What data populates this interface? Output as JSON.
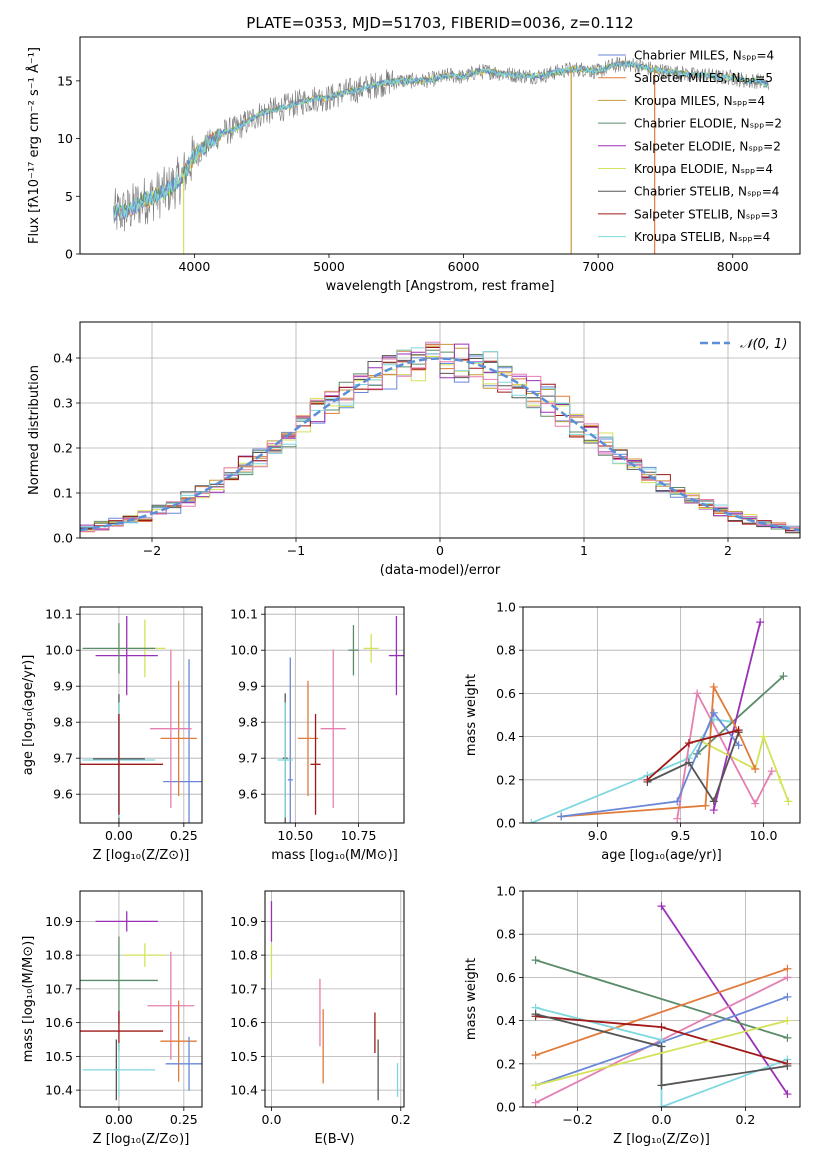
{
  "colors": {
    "chabrier_miles": "#6a87d8",
    "salpeter_miles": "#e07b39",
    "kroupa_miles": "#c49a3a",
    "chabrier_elodie": "#5b8c6a",
    "salpeter_elodie": "#9b30b8",
    "kroupa_elodie": "#d4e25a",
    "chabrier_stelib": "#555555",
    "salpeter_stelib": "#a01818",
    "kroupa_stelib": "#7fd8e0",
    "pink": "#e57fb0",
    "normal": "#5b8fd9"
  },
  "chart_data": [
    {
      "type": "line",
      "title": "PLATE=0353, MJD=51703, FIBERID=0036, z=0.112",
      "xlabel": "wavelength [Angstrom, rest frame]",
      "ylabel": "Flux [fλ10⁻¹⁷ erg cm⁻² s⁻¹ Å⁻¹]",
      "xlim": [
        3150,
        8500
      ],
      "ylim": [
        0,
        18.8
      ],
      "xticks": [
        "4000",
        "5000",
        "6000",
        "7000",
        "8000"
      ],
      "yticks": [
        "0",
        "5",
        "10",
        "15"
      ],
      "legend_position": "right",
      "legend": [
        {
          "key": "chabrier_miles",
          "text": "Chabrier MILES, Nₛₚₚ=4"
        },
        {
          "key": "salpeter_miles",
          "text": "Salpeter MILES, Nₛₚₚ=5"
        },
        {
          "key": "kroupa_miles",
          "text": "Kroupa MILES, Nₛₚₚ=4"
        },
        {
          "key": "chabrier_elodie",
          "text": "Chabrier ELODIE, Nₛₚₚ=2"
        },
        {
          "key": "salpeter_elodie",
          "text": "Salpeter ELODIE, Nₛₚₚ=2"
        },
        {
          "key": "kroupa_elodie",
          "text": "Kroupa ELODIE, Nₛₚₚ=4"
        },
        {
          "key": "chabrier_stelib",
          "text": "Chabrier STELIB, Nₛₚₚ=4"
        },
        {
          "key": "salpeter_stelib",
          "text": "Salpeter STELIB, Nₛₚₚ=3"
        },
        {
          "key": "kroupa_stelib",
          "text": "Kroupa STELIB, Nₛₚₚ=4"
        }
      ],
      "spectrum_x": [
        3400,
        3500,
        3600,
        3700,
        3800,
        3900,
        4000,
        4100,
        4200,
        4300,
        4400,
        4500,
        4600,
        4700,
        4800,
        4900,
        5000,
        5100,
        5200,
        5300,
        5400,
        5500,
        5600,
        5700,
        5800,
        5900,
        6000,
        6100,
        6200,
        6300,
        6400,
        6500,
        6600,
        6700,
        6800,
        6900,
        7000,
        7100,
        7200,
        7300,
        7400,
        7500,
        7600,
        7700,
        7800,
        7900,
        8000,
        8100,
        8200,
        8270
      ],
      "spectrum_y": [
        3.5,
        3.7,
        4.5,
        5.0,
        5.5,
        6.5,
        8.5,
        9.5,
        10.5,
        10.8,
        11.5,
        12.2,
        12.5,
        12.8,
        13.2,
        13.5,
        13.5,
        14.0,
        14.2,
        14.5,
        14.8,
        15.0,
        15.0,
        15.0,
        15.2,
        15.5,
        15.3,
        15.8,
        15.8,
        15.6,
        15.5,
        15.4,
        15.5,
        15.8,
        16.0,
        16.0,
        15.8,
        16.3,
        16.5,
        16.3,
        16.0,
        15.8,
        15.7,
        15.5,
        15.5,
        15.3,
        15.3,
        15.0,
        15.0,
        14.6
      ]
    },
    {
      "type": "area",
      "title": "",
      "xlabel": "(data-model)/error",
      "ylabel": "Normed distribution",
      "xlim": [
        -2.5,
        2.5
      ],
      "ylim": [
        0,
        0.48
      ],
      "xticks": [
        "−2",
        "−1",
        "0",
        "1",
        "2"
      ],
      "yticks": [
        "0.0",
        "0.1",
        "0.2",
        "0.3",
        "0.4"
      ],
      "grid": true,
      "legend_position": "top-right",
      "legend": [
        {
          "key": "normal",
          "text": "𝒩(0, 1)"
        }
      ],
      "bin_width": 0.1,
      "bin_start": -2.5,
      "series_keys": [
        "chabrier_miles",
        "salpeter_miles",
        "kroupa_miles",
        "chabrier_elodie",
        "salpeter_elodie",
        "kroupa_elodie",
        "chabrier_stelib",
        "salpeter_stelib",
        "kroupa_stelib",
        "pink"
      ]
    },
    {
      "type": "scatter",
      "xlabel": "Z [log₁₀(Z/Z⊙)]",
      "ylabel": "age  [log₁₀(age/yr)]",
      "xlim": [
        -0.15,
        0.32
      ],
      "ylim": [
        9.52,
        10.12
      ],
      "xticks": [
        "0.00",
        "0.25"
      ],
      "yticks": [
        "9.6",
        "9.7",
        "9.8",
        "9.9",
        "10.0",
        "10.1"
      ],
      "points": [
        {
          "key": "chabrier_miles",
          "x": 0.27,
          "y": 9.635,
          "xerr": 0.1,
          "yerr": 0.34
        },
        {
          "key": "salpeter_miles",
          "x": 0.23,
          "y": 9.755,
          "xerr": 0.07,
          "yerr": 0.16
        },
        {
          "key": "pink",
          "x": 0.2,
          "y": 9.782,
          "xerr": 0.08,
          "yerr": 0.22
        },
        {
          "key": "kroupa_elodie",
          "x": 0.1,
          "y": 10.005,
          "xerr": 0.08,
          "yerr": 0.08
        },
        {
          "key": "salpeter_elodie",
          "x": 0.03,
          "y": 9.985,
          "xerr": 0.12,
          "yerr": 0.11
        },
        {
          "key": "chabrier_elodie",
          "x": 0.0,
          "y": 10.005,
          "xerr": 0.14,
          "yerr": 0.07
        },
        {
          "key": "chabrier_stelib",
          "x": 0.0,
          "y": 9.698,
          "xerr": 0.1,
          "yerr": 0.18
        },
        {
          "key": "kroupa_stelib",
          "x": 0.0,
          "y": 9.695,
          "xerr": 0.14,
          "yerr": 0.16
        },
        {
          "key": "salpeter_stelib",
          "x": 0.0,
          "y": 9.683,
          "xerr": 0.17,
          "yerr": 0.14
        }
      ]
    },
    {
      "type": "scatter",
      "xlabel": "mass [log₁₀(M/M⊙)]",
      "ylabel": "",
      "xlim": [
        10.38,
        10.93
      ],
      "ylim": [
        9.52,
        10.12
      ],
      "xticks": [
        "10.50",
        "10.75"
      ],
      "yticks": [
        "9.6",
        "9.7",
        "9.8",
        "9.9",
        "10.0",
        "10.1"
      ],
      "points": [
        {
          "key": "chabrier_miles",
          "x": 10.48,
          "y": 9.64,
          "xerr": 0.01,
          "yerr": 0.34
        },
        {
          "key": "salpeter_miles",
          "x": 10.55,
          "y": 9.755,
          "xerr": 0.04,
          "yerr": 0.16
        },
        {
          "key": "pink",
          "x": 10.65,
          "y": 9.782,
          "xerr": 0.05,
          "yerr": 0.22
        },
        {
          "key": "kroupa_elodie",
          "x": 10.8,
          "y": 10.005,
          "xerr": 0.03,
          "yerr": 0.04
        },
        {
          "key": "salpeter_elodie",
          "x": 10.9,
          "y": 9.985,
          "xerr": 0.03,
          "yerr": 0.11
        },
        {
          "key": "chabrier_elodie",
          "x": 10.73,
          "y": 10.0,
          "xerr": 0.02,
          "yerr": 0.07
        },
        {
          "key": "chabrier_stelib",
          "x": 10.46,
          "y": 9.7,
          "xerr": 0.01,
          "yerr": 0.18
        },
        {
          "key": "kroupa_stelib",
          "x": 10.46,
          "y": 9.695,
          "xerr": 0.03,
          "yerr": 0.16
        },
        {
          "key": "salpeter_stelib",
          "x": 10.58,
          "y": 9.683,
          "xerr": 0.02,
          "yerr": 0.14
        }
      ]
    },
    {
      "type": "line",
      "xlabel": "age  [log₁₀(age/yr)]",
      "ylabel": "mass weight",
      "xlim": [
        8.55,
        10.22
      ],
      "ylim": [
        0,
        1.0
      ],
      "xticks": [
        "9.0",
        "9.5",
        "10.0"
      ],
      "yticks": [
        "0.0",
        "0.2",
        "0.4",
        "0.6",
        "0.8",
        "1.0"
      ],
      "grid": true,
      "series": [
        {
          "key": "kroupa_stelib",
          "x": [
            8.6,
            9.3,
            9.55,
            9.7,
            9.8
          ],
          "y": [
            0.0,
            0.22,
            0.3,
            0.48,
            0.47
          ]
        },
        {
          "key": "chabrier_elodie",
          "x": [
            9.6,
            10.12
          ],
          "y": [
            0.32,
            0.68
          ]
        },
        {
          "key": "salpeter_elodie",
          "x": [
            9.7,
            9.98
          ],
          "y": [
            0.06,
            0.93
          ]
        },
        {
          "key": "kroupa_elodie",
          "x": [
            9.62,
            9.95,
            10.0,
            10.1,
            10.15
          ],
          "y": [
            0.38,
            0.25,
            0.4,
            0.2,
            0.1
          ]
        },
        {
          "key": "pink",
          "x": [
            9.48,
            9.6,
            9.95,
            10.05
          ],
          "y": [
            0.02,
            0.6,
            0.09,
            0.24
          ]
        },
        {
          "key": "salpeter_miles",
          "x": [
            8.78,
            9.65,
            9.7,
            9.85,
            9.95
          ],
          "y": [
            0.03,
            0.08,
            0.63,
            0.42,
            0.25
          ]
        },
        {
          "key": "chabrier_miles",
          "x": [
            8.78,
            9.48,
            9.7,
            9.85
          ],
          "y": [
            0.03,
            0.1,
            0.51,
            0.36
          ]
        },
        {
          "key": "chabrier_stelib",
          "x": [
            9.3,
            9.55,
            9.7,
            9.85
          ],
          "y": [
            0.19,
            0.28,
            0.1,
            0.42
          ]
        },
        {
          "key": "salpeter_stelib",
          "x": [
            9.3,
            9.55,
            9.85
          ],
          "y": [
            0.2,
            0.37,
            0.43
          ]
        }
      ]
    },
    {
      "type": "scatter",
      "xlabel": "Z [log₁₀(Z/Z⊙)]",
      "ylabel": "mass [log₁₀(M/M⊙)]",
      "xlim": [
        -0.15,
        0.32
      ],
      "ylim": [
        10.35,
        10.99
      ],
      "xticks": [
        "0.00",
        "0.25"
      ],
      "yticks": [
        "10.4",
        "10.5",
        "10.6",
        "10.7",
        "10.8",
        "10.9"
      ],
      "points": [
        {
          "key": "salpeter_elodie",
          "x": 0.03,
          "y": 10.9,
          "xerr": 0.12,
          "yerr": 0.03
        },
        {
          "key": "kroupa_elodie",
          "x": 0.1,
          "y": 10.8,
          "xerr": 0.08,
          "yerr": 0.035
        },
        {
          "key": "chabrier_elodie",
          "x": 0.0,
          "y": 10.725,
          "xerr": 0.15,
          "yerr": 0.13
        },
        {
          "key": "pink",
          "x": 0.2,
          "y": 10.65,
          "xerr": 0.09,
          "yerr": 0.16
        },
        {
          "key": "salpeter_stelib",
          "x": 0.0,
          "y": 10.575,
          "xerr": 0.17,
          "yerr": 0.06
        },
        {
          "key": "salpeter_miles",
          "x": 0.23,
          "y": 10.545,
          "xerr": 0.07,
          "yerr": 0.12
        },
        {
          "key": "chabrier_miles",
          "x": 0.27,
          "y": 10.478,
          "xerr": 0.09,
          "yerr": 0.08
        },
        {
          "key": "chabrier_stelib",
          "x": -0.01,
          "y": 10.46,
          "xerr": 0.01,
          "yerr": 0.09
        },
        {
          "key": "kroupa_stelib",
          "x": 0.0,
          "y": 10.46,
          "xerr": 0.14,
          "yerr": 0.08
        }
      ]
    },
    {
      "type": "scatter",
      "xlabel": "E(B-V)",
      "ylabel": "",
      "xlim": [
        -0.01,
        0.205
      ],
      "ylim": [
        10.35,
        10.99
      ],
      "xticks": [
        "0.0",
        "0.2"
      ],
      "yticks": [
        "10.4",
        "10.5",
        "10.6",
        "10.7",
        "10.8",
        "10.9"
      ],
      "points": [
        {
          "key": "salpeter_elodie",
          "x": 0.0,
          "y": 10.9,
          "xerr": 0.0,
          "yerr": 0.06
        },
        {
          "key": "kroupa_elodie",
          "x": 0.0,
          "y": 10.78,
          "xerr": 0.0,
          "yerr": 0.05
        },
        {
          "key": "pink",
          "x": 0.075,
          "y": 10.63,
          "xerr": 0.0,
          "yerr": 0.1
        },
        {
          "key": "salpeter_miles",
          "x": 0.08,
          "y": 10.53,
          "xerr": 0.0,
          "yerr": 0.11
        },
        {
          "key": "salpeter_stelib",
          "x": 0.16,
          "y": 10.57,
          "xerr": 0.0,
          "yerr": 0.06
        },
        {
          "key": "chabrier_stelib",
          "x": 0.165,
          "y": 10.46,
          "xerr": 0.0,
          "yerr": 0.09
        },
        {
          "key": "kroupa_stelib",
          "x": 0.195,
          "y": 10.43,
          "xerr": 0.0,
          "yerr": 0.05
        }
      ]
    },
    {
      "type": "line",
      "xlabel": "Z [log₁₀(Z/Z⊙)]",
      "ylabel": "mass weight",
      "xlim": [
        -0.33,
        0.33
      ],
      "ylim": [
        0,
        1.0
      ],
      "xticks": [
        "−0.2",
        "0.0",
        "0.2"
      ],
      "yticks": [
        "0.0",
        "0.2",
        "0.4",
        "0.6",
        "0.8",
        "1.0"
      ],
      "grid": true,
      "series": [
        {
          "key": "salpeter_elodie",
          "x": [
            0.0,
            0.3
          ],
          "y": [
            0.93,
            0.06
          ]
        },
        {
          "key": "chabrier_elodie",
          "x": [
            -0.3,
            0.3
          ],
          "y": [
            0.68,
            0.32
          ]
        },
        {
          "key": "salpeter_miles",
          "x": [
            -0.3,
            0.3
          ],
          "y": [
            0.24,
            0.64
          ]
        },
        {
          "key": "pink",
          "x": [
            -0.3,
            0.3
          ],
          "y": [
            0.02,
            0.6
          ]
        },
        {
          "key": "chabrier_miles",
          "x": [
            -0.3,
            0.0,
            0.3
          ],
          "y": [
            0.1,
            0.3,
            0.51
          ]
        },
        {
          "key": "kroupa_stelib",
          "x": [
            -0.3,
            0.0,
            0.0,
            0.3
          ],
          "y": [
            0.46,
            0.31,
            0.0,
            0.22
          ]
        },
        {
          "key": "salpeter_stelib",
          "x": [
            -0.3,
            0.0,
            0.3
          ],
          "y": [
            0.42,
            0.37,
            0.2
          ]
        },
        {
          "key": "chabrier_stelib",
          "x": [
            -0.3,
            0.0,
            0.0,
            0.3
          ],
          "y": [
            0.43,
            0.28,
            0.1,
            0.19
          ]
        },
        {
          "key": "kroupa_elodie",
          "x": [
            -0.3,
            0.3
          ],
          "y": [
            0.1,
            0.4
          ]
        }
      ]
    }
  ]
}
